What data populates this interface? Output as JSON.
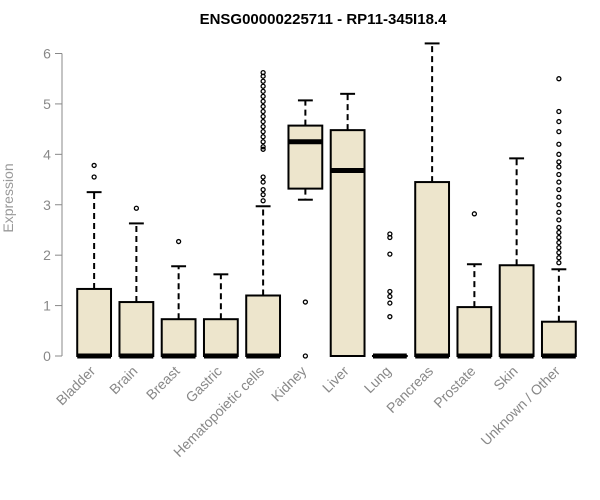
{
  "chart_data": {
    "type": "box",
    "title": "ENSG00000225711 - RP11-345I18.4",
    "xlabel": "",
    "ylabel": "Expression",
    "ylim": [
      0,
      6.3
    ],
    "yticks": [
      0,
      1,
      2,
      3,
      4,
      5,
      6
    ],
    "grid": false,
    "box_fill": "#ede5cc",
    "categories": [
      "Bladder",
      "Brain",
      "Breast",
      "Gastric",
      "Hematopoietic cells",
      "Kidney",
      "Liver",
      "Lung",
      "Pancreas",
      "Prostate",
      "Skin",
      "Unknown / Other"
    ],
    "boxes": [
      {
        "category": "Bladder",
        "q1": 0,
        "median": 0,
        "q3": 1.33,
        "whisker_low": 0,
        "whisker_high": 3.25,
        "outliers": [
          3.55,
          3.78
        ]
      },
      {
        "category": "Brain",
        "q1": 0,
        "median": 0,
        "q3": 1.07,
        "whisker_low": 0,
        "whisker_high": 2.63,
        "outliers": [
          2.93
        ]
      },
      {
        "category": "Breast",
        "q1": 0,
        "median": 0,
        "q3": 0.73,
        "whisker_low": 0,
        "whisker_high": 1.78,
        "outliers": [
          2.27
        ]
      },
      {
        "category": "Gastric",
        "q1": 0,
        "median": 0,
        "q3": 0.73,
        "whisker_low": 0,
        "whisker_high": 1.62,
        "outliers": []
      },
      {
        "category": "Hematopoietic cells",
        "q1": 0,
        "median": 0,
        "q3": 1.2,
        "whisker_low": 0,
        "whisker_high": 2.97,
        "outliers": [
          3.08,
          3.2,
          3.3,
          3.45,
          3.55,
          4.1,
          4.15,
          4.25,
          4.35,
          4.45,
          4.55,
          4.65,
          4.75,
          4.85,
          4.95,
          5.05,
          5.15,
          5.25,
          5.35,
          5.45,
          5.55,
          5.62
        ]
      },
      {
        "category": "Kidney",
        "q1": 3.32,
        "median": 4.25,
        "q3": 4.57,
        "whisker_low": 3.1,
        "whisker_high": 5.07,
        "outliers": [
          1.07,
          0
        ]
      },
      {
        "category": "Liver",
        "q1": 0,
        "median": 3.68,
        "q3": 4.48,
        "whisker_low": 0,
        "whisker_high": 5.2,
        "outliers": []
      },
      {
        "category": "Lung",
        "q1": 0,
        "median": 0,
        "q3": 0,
        "whisker_low": 0,
        "whisker_high": 0,
        "outliers": [
          0.78,
          1.05,
          1.18,
          1.28,
          2.02,
          2.35,
          2.42
        ]
      },
      {
        "category": "Pancreas",
        "q1": 0,
        "median": 0,
        "q3": 3.45,
        "whisker_low": 0,
        "whisker_high": 6.2,
        "outliers": []
      },
      {
        "category": "Prostate",
        "q1": 0,
        "median": 0,
        "q3": 0.97,
        "whisker_low": 0,
        "whisker_high": 1.82,
        "outliers": [
          2.82
        ]
      },
      {
        "category": "Skin",
        "q1": 0,
        "median": 0,
        "q3": 1.8,
        "whisker_low": 0,
        "whisker_high": 3.92,
        "outliers": []
      },
      {
        "category": "Unknown / Other",
        "q1": 0,
        "median": 0,
        "q3": 0.68,
        "whisker_low": 0,
        "whisker_high": 1.72,
        "outliers": [
          1.85,
          1.95,
          2.05,
          2.15,
          2.25,
          2.35,
          2.45,
          2.55,
          2.7,
          2.85,
          3.0,
          3.15,
          3.3,
          3.45,
          3.6,
          3.75,
          3.85,
          4.0,
          4.2,
          4.45,
          4.65,
          4.85,
          5.5
        ]
      }
    ]
  }
}
